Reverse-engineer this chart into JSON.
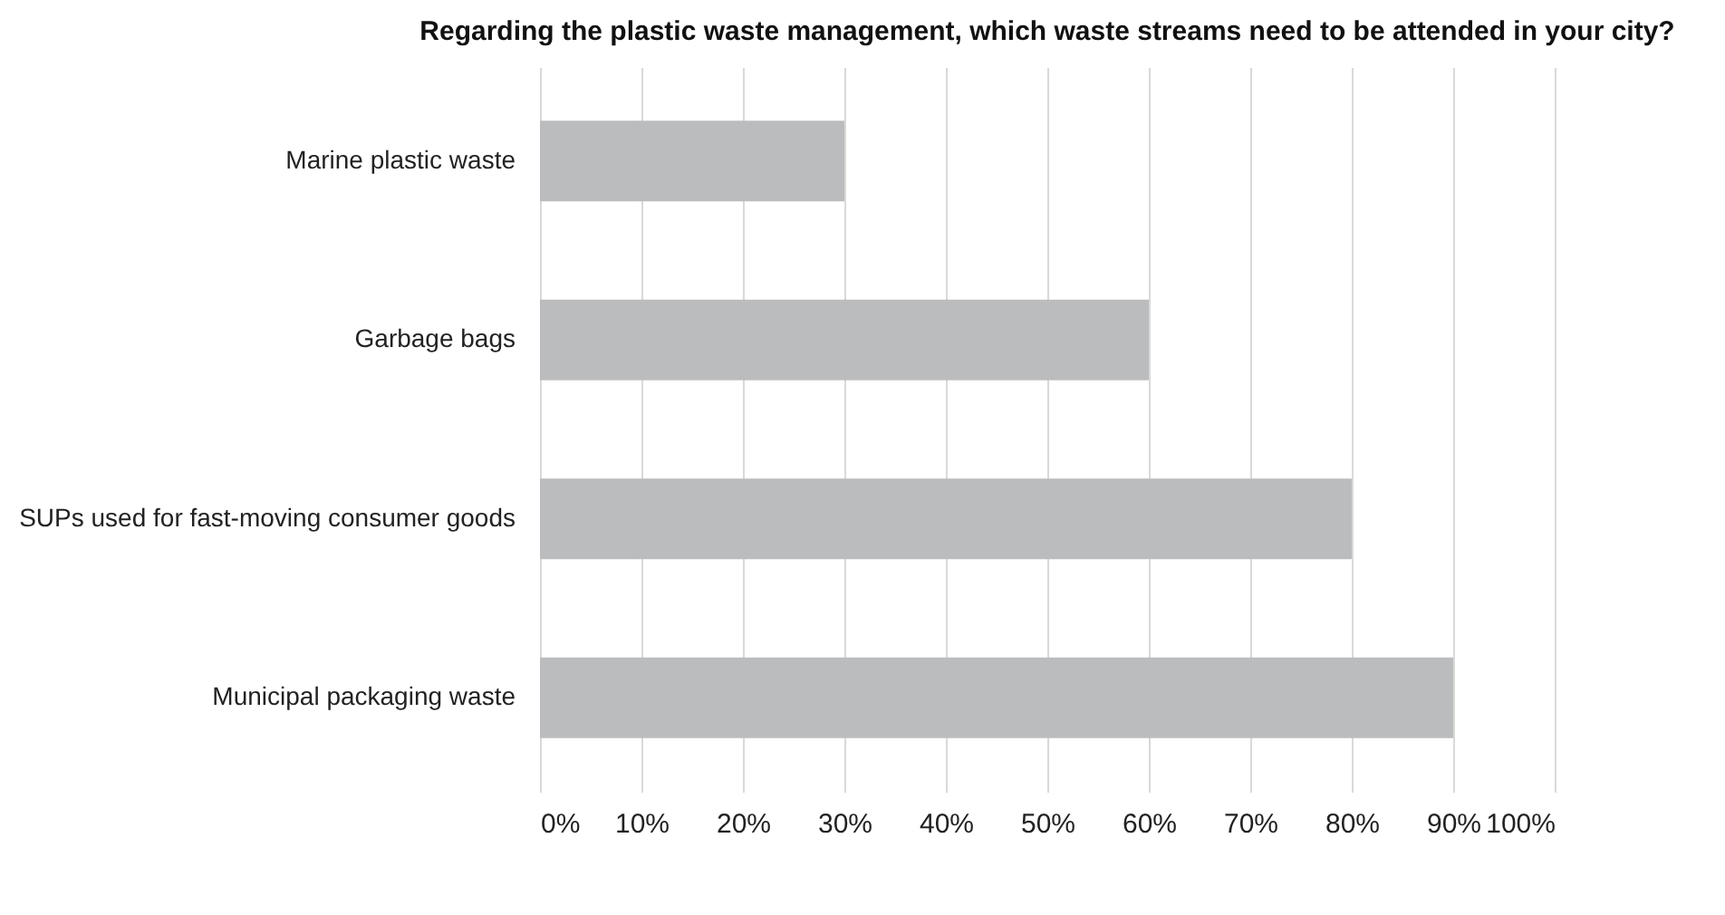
{
  "chart_data": {
    "type": "bar",
    "orientation": "horizontal",
    "title": "Regarding the plastic waste management, which waste streams need to be attended in your city?",
    "categories": [
      "Marine plastic waste",
      "Garbage bags",
      "SUPs used for fast-moving consumer goods",
      "Municipal packaging waste"
    ],
    "values": [
      30,
      60,
      80,
      90
    ],
    "color": "#bbbcbe",
    "xlim": [
      0,
      100
    ],
    "xticks": [
      {
        "value": 0,
        "label": "0%"
      },
      {
        "value": 10,
        "label": "10%"
      },
      {
        "value": 20,
        "label": "20%"
      },
      {
        "value": 30,
        "label": "30%"
      },
      {
        "value": 40,
        "label": "40%"
      },
      {
        "value": 50,
        "label": "50%"
      },
      {
        "value": 60,
        "label": "60%"
      },
      {
        "value": 70,
        "label": "70%"
      },
      {
        "value": 80,
        "label": "80%"
      },
      {
        "value": 90,
        "label": "90%"
      },
      {
        "value": 100,
        "label": "100%"
      }
    ],
    "grid": "x"
  }
}
